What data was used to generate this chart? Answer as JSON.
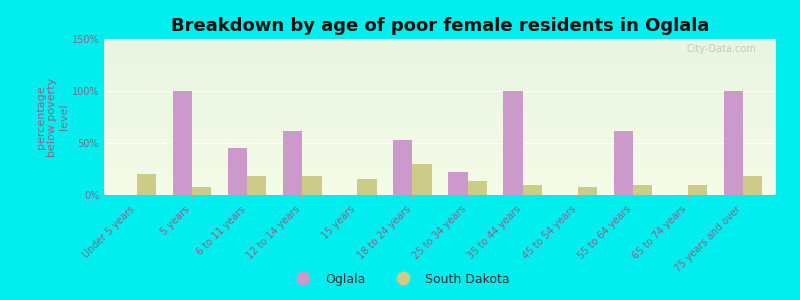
{
  "title": "Breakdown by age of poor female residents in Oglala",
  "ylabel": "percentage\nbelow poverty\nlevel",
  "categories": [
    "Under 5 years",
    "5 years",
    "6 to 11 years",
    "12 to 14 years",
    "15 years",
    "18 to 24 years",
    "25 to 34 years",
    "35 to 44 years",
    "45 to 54 years",
    "55 to 64 years",
    "65 to 74 years",
    "75 years and over"
  ],
  "oglala_values": [
    0,
    100,
    45,
    62,
    0,
    53,
    22,
    100,
    0,
    62,
    0,
    100
  ],
  "sd_values": [
    20,
    8,
    18,
    18,
    15,
    30,
    13,
    10,
    8,
    10,
    10,
    18
  ],
  "oglala_color": "#cc99cc",
  "sd_color": "#cccc88",
  "outer_bg": "#00eeee",
  "ylim": [
    0,
    150
  ],
  "yticks": [
    0,
    50,
    100,
    150
  ],
  "ytick_labels": [
    "0%",
    "50%",
    "100%",
    "150%"
  ],
  "bar_width": 0.35,
  "title_fontsize": 13,
  "axis_label_fontsize": 8,
  "tick_fontsize": 7,
  "legend_fontsize": 9,
  "watermark_text": "City-Data.com",
  "tick_color": "#886688",
  "ylabel_color": "#886688"
}
